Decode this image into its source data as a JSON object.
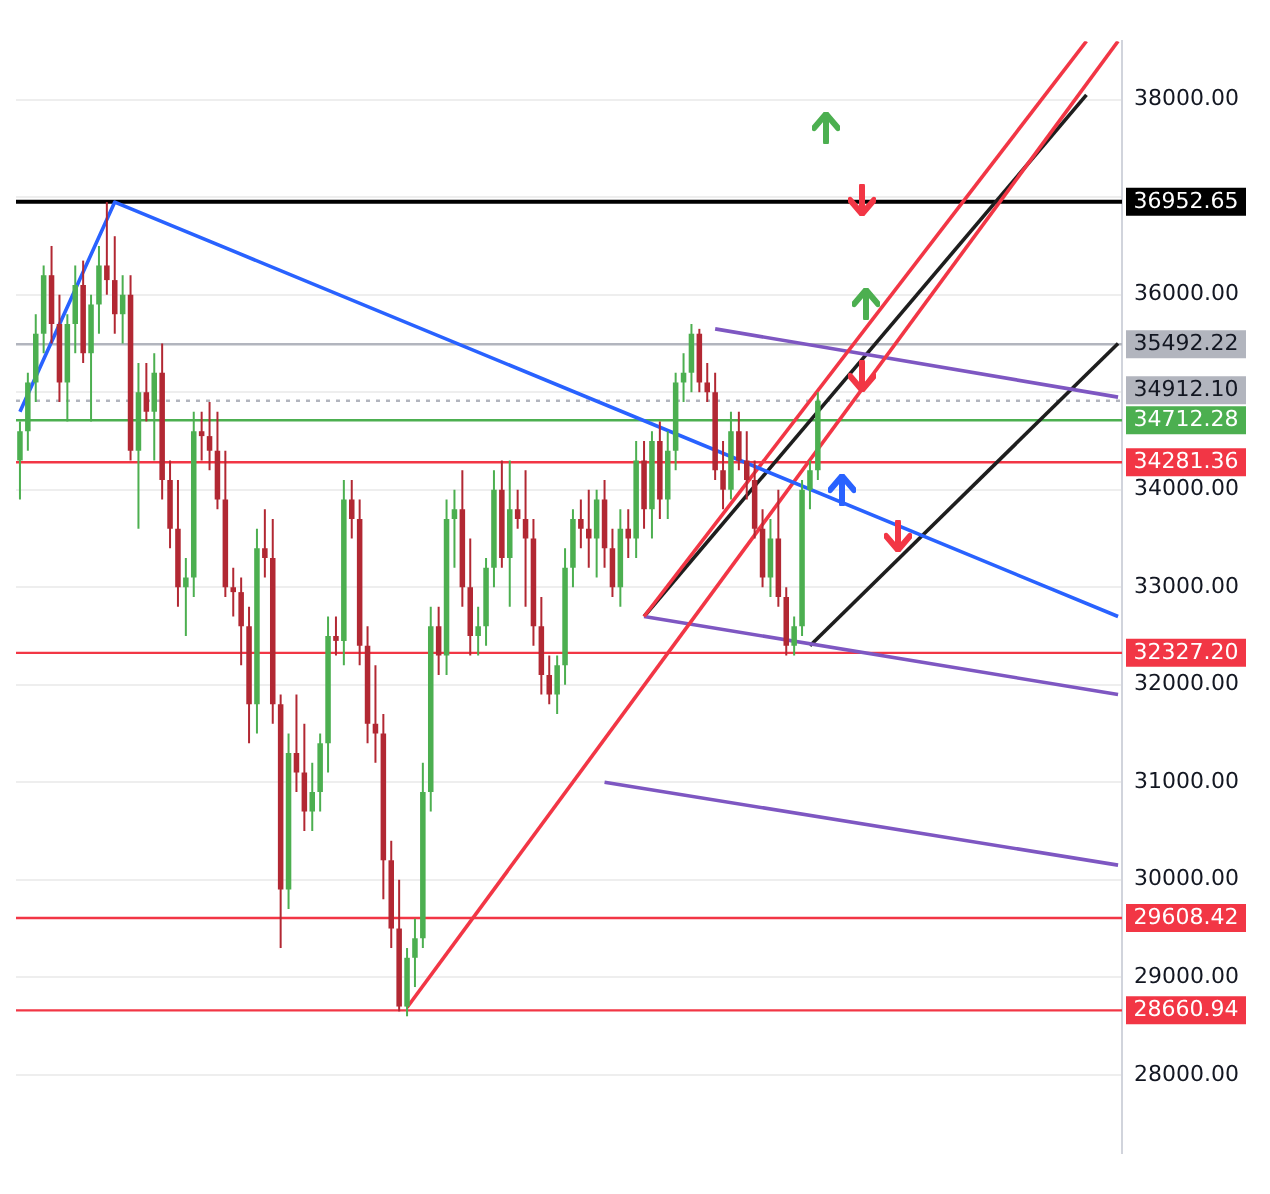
{
  "chart_data": {
    "type": "candlestick",
    "categories": [
      null,
      null,
      null,
      null,
      null,
      null,
      null,
      null,
      null,
      null,
      null,
      null,
      null,
      null,
      null,
      null,
      null,
      null,
      null,
      null,
      null,
      null,
      null,
      null,
      null,
      null,
      null,
      null,
      null,
      null,
      null,
      null,
      null,
      null,
      null,
      null,
      null,
      null,
      null,
      null,
      null,
      null,
      null,
      null,
      null,
      null,
      null,
      null,
      null,
      null,
      null,
      null,
      null,
      null,
      null,
      null,
      null,
      null,
      null,
      null,
      null,
      null,
      null,
      null,
      null,
      null,
      null,
      null,
      null,
      null,
      null,
      null,
      null,
      null,
      null,
      null,
      null,
      null,
      null,
      null,
      null,
      null,
      null,
      null,
      null,
      null,
      null,
      null,
      null,
      null,
      null,
      null,
      null,
      null,
      null,
      null,
      null,
      null,
      null,
      null,
      null,
      null,
      null,
      null,
      null,
      null,
      null,
      null,
      null,
      null,
      null,
      null,
      null,
      null,
      null,
      null,
      null,
      null,
      null,
      null,
      null,
      null,
      null,
      null,
      null,
      null,
      null,
      null,
      null,
      null,
      null,
      null,
      null,
      null,
      null,
      null,
      null,
      null,
      null,
      null
    ],
    "ohlc": [
      [
        34300,
        34700,
        33900,
        34600
      ],
      [
        34600,
        35200,
        34400,
        35100
      ],
      [
        35100,
        35800,
        34900,
        35600
      ],
      [
        35600,
        36300,
        35400,
        36200
      ],
      [
        36200,
        36500,
        35500,
        35700
      ],
      [
        35700,
        36000,
        34900,
        35100
      ],
      [
        35100,
        35800,
        34700,
        35700
      ],
      [
        35700,
        36300,
        35400,
        36100
      ],
      [
        36100,
        36350,
        35300,
        35400
      ],
      [
        35400,
        36000,
        34700,
        35900
      ],
      [
        35900,
        36500,
        35600,
        36300
      ],
      [
        36300,
        36950,
        36000,
        36150
      ],
      [
        36150,
        36600,
        35600,
        35800
      ],
      [
        35800,
        36200,
        35500,
        36000
      ],
      [
        36000,
        36200,
        34300,
        34400
      ],
      [
        34400,
        35300,
        33600,
        35000
      ],
      [
        35000,
        35300,
        34700,
        34800
      ],
      [
        34800,
        35400,
        34300,
        35200
      ],
      [
        35200,
        35500,
        33900,
        34100
      ],
      [
        34100,
        34300,
        33400,
        33600
      ],
      [
        33600,
        34100,
        32800,
        33000
      ],
      [
        33000,
        33300,
        32500,
        33100
      ],
      [
        33100,
        34800,
        32900,
        34600
      ],
      [
        34600,
        34800,
        34300,
        34550
      ],
      [
        34550,
        34900,
        34200,
        34400
      ],
      [
        34400,
        34800,
        33800,
        33900
      ],
      [
        33900,
        34400,
        32900,
        33000
      ],
      [
        33000,
        33200,
        32700,
        32950
      ],
      [
        32950,
        33100,
        32200,
        32600
      ],
      [
        32600,
        32800,
        31400,
        31800
      ],
      [
        31800,
        33600,
        31500,
        33400
      ],
      [
        33400,
        33800,
        33100,
        33300
      ],
      [
        33300,
        33700,
        31600,
        31800
      ],
      [
        31800,
        31900,
        29300,
        29900
      ],
      [
        29900,
        31500,
        29700,
        31300
      ],
      [
        31300,
        31900,
        30900,
        31100
      ],
      [
        31100,
        31600,
        30500,
        30700
      ],
      [
        30700,
        31200,
        30500,
        30900
      ],
      [
        30900,
        31500,
        30700,
        31400
      ],
      [
        31400,
        32700,
        31100,
        32500
      ],
      [
        32500,
        32700,
        32300,
        32450
      ],
      [
        32450,
        34100,
        32200,
        33900
      ],
      [
        33900,
        34100,
        33500,
        33700
      ],
      [
        33700,
        33900,
        32200,
        32400
      ],
      [
        32400,
        32600,
        31400,
        31600
      ],
      [
        31600,
        32200,
        31200,
        31500
      ],
      [
        31500,
        31700,
        29800,
        30200
      ],
      [
        30200,
        30400,
        29300,
        29500
      ],
      [
        29500,
        30000,
        28650,
        28700
      ],
      [
        28700,
        29300,
        28600,
        29200
      ],
      [
        29200,
        29600,
        28900,
        29400
      ],
      [
        29400,
        31200,
        29300,
        30900
      ],
      [
        30900,
        32800,
        30700,
        32600
      ],
      [
        32600,
        32800,
        32100,
        32300
      ],
      [
        32300,
        33900,
        32100,
        33700
      ],
      [
        33700,
        34000,
        33200,
        33800
      ],
      [
        33800,
        34200,
        32800,
        33000
      ],
      [
        33000,
        33500,
        32300,
        32500
      ],
      [
        32500,
        32800,
        32300,
        32600
      ],
      [
        32600,
        33300,
        32400,
        33200
      ],
      [
        33200,
        34200,
        33000,
        34000
      ],
      [
        34000,
        34300,
        33200,
        33300
      ],
      [
        33300,
        34300,
        32800,
        33800
      ],
      [
        33800,
        34000,
        33600,
        33700
      ],
      [
        33700,
        34200,
        32800,
        33500
      ],
      [
        33500,
        33700,
        32400,
        32600
      ],
      [
        32600,
        32900,
        31900,
        32100
      ],
      [
        32100,
        32300,
        31800,
        31900
      ],
      [
        31900,
        32300,
        31700,
        32200
      ],
      [
        32200,
        33400,
        32000,
        33200
      ],
      [
        33200,
        33800,
        33000,
        33700
      ],
      [
        33700,
        33900,
        33400,
        33600
      ],
      [
        33600,
        34000,
        33200,
        33500
      ],
      [
        33500,
        34000,
        33100,
        33900
      ],
      [
        33900,
        34100,
        33200,
        33400
      ],
      [
        33400,
        33600,
        32900,
        33000
      ],
      [
        33000,
        33800,
        32800,
        33600
      ],
      [
        33600,
        33800,
        33300,
        33500
      ],
      [
        33500,
        34500,
        33300,
        34300
      ],
      [
        34300,
        34500,
        33600,
        33800
      ],
      [
        33800,
        34600,
        33500,
        34500
      ],
      [
        34500,
        34700,
        33700,
        33900
      ],
      [
        33900,
        34600,
        33700,
        34400
      ],
      [
        34400,
        35200,
        34200,
        35100
      ],
      [
        35100,
        35400,
        34900,
        35200
      ],
      [
        35200,
        35700,
        35000,
        35600
      ],
      [
        35600,
        35650,
        35000,
        35100
      ],
      [
        35100,
        35300,
        34900,
        35000
      ],
      [
        35000,
        35200,
        34100,
        34200
      ],
      [
        34200,
        34500,
        33800,
        34000
      ],
      [
        34000,
        34800,
        33900,
        34600
      ],
      [
        34600,
        34800,
        34200,
        34300
      ],
      [
        34300,
        34600,
        33900,
        34100
      ],
      [
        34100,
        34300,
        33500,
        33600
      ],
      [
        33600,
        33800,
        33000,
        33100
      ],
      [
        33100,
        33700,
        32900,
        33500
      ],
      [
        33500,
        34000,
        32800,
        32900
      ],
      [
        32900,
        33000,
        32300,
        32400
      ],
      [
        32400,
        32700,
        32300,
        32600
      ],
      [
        32600,
        34100,
        32500,
        34000
      ],
      [
        34000,
        34300,
        33800,
        34200
      ],
      [
        34200,
        35000,
        34100,
        34912.1
      ],
      null,
      null,
      null,
      null,
      null,
      null,
      null,
      null,
      null,
      null,
      null,
      null,
      null,
      null,
      null,
      null,
      null,
      null,
      null,
      null,
      null,
      null,
      null,
      null,
      null,
      null,
      null,
      null,
      null,
      null,
      null,
      null,
      null,
      null,
      null,
      null,
      null,
      null
    ],
    "series": [
      {
        "type": "line",
        "color": "#2962ff",
        "values": [
          34800,
          null,
          null,
          null,
          null,
          null,
          null,
          null,
          null,
          null,
          null,
          null,
          36950,
          null,
          null,
          null,
          null,
          null,
          null,
          null,
          null,
          null,
          null,
          null,
          null,
          null,
          null,
          null,
          null,
          null,
          null,
          null,
          null,
          null,
          null,
          null,
          null,
          null,
          null,
          null,
          null,
          null,
          null,
          null,
          null,
          null,
          null,
          null,
          null,
          null,
          null,
          null,
          null,
          null,
          null,
          null,
          null,
          null,
          null,
          null,
          null,
          null,
          null,
          null,
          null,
          null,
          null,
          null,
          null,
          null,
          null,
          null,
          null,
          null,
          null,
          null,
          null,
          null,
          null,
          null,
          null,
          null,
          null,
          null,
          null,
          null,
          null,
          null,
          null,
          null,
          null,
          null,
          null,
          null,
          null,
          null,
          null,
          null,
          null,
          null,
          null,
          null,
          null,
          null,
          null,
          null,
          null,
          null,
          null,
          null,
          null,
          null,
          null,
          null,
          null,
          null,
          null,
          null,
          null,
          null,
          null,
          null,
          null,
          null,
          null,
          null,
          null,
          null,
          null,
          null,
          null,
          null,
          null,
          null,
          null,
          null,
          null,
          null,
          null,
          32700
        ]
      },
      {
        "type": "line",
        "color": "#f23645",
        "values": [
          null,
          null,
          null,
          null,
          null,
          null,
          null,
          null,
          null,
          null,
          null,
          null,
          null,
          null,
          null,
          null,
          null,
          null,
          null,
          null,
          null,
          null,
          null,
          null,
          null,
          null,
          null,
          null,
          null,
          null,
          null,
          null,
          null,
          null,
          null,
          null,
          null,
          null,
          null,
          null,
          null,
          null,
          null,
          null,
          null,
          null,
          null,
          null,
          null,
          28690,
          null,
          null,
          null,
          null,
          null,
          null,
          null,
          null,
          null,
          null,
          null,
          null,
          null,
          null,
          null,
          null,
          null,
          null,
          null,
          null,
          null,
          null,
          null,
          null,
          null,
          null,
          null,
          null,
          null,
          null,
          null,
          null,
          null,
          null,
          null,
          null,
          null,
          null,
          null,
          null,
          null,
          null,
          null,
          null,
          null,
          null,
          null,
          null,
          null,
          null,
          null,
          null,
          null,
          null,
          null,
          null,
          null,
          null,
          null,
          null,
          null,
          null,
          null,
          null,
          null,
          null,
          null,
          null,
          null,
          null,
          null,
          null,
          null,
          null,
          null,
          null,
          null,
          null,
          null,
          null,
          null,
          null,
          null,
          null,
          null,
          null,
          null,
          null,
          null,
          38600
        ]
      },
      {
        "type": "line",
        "color": "#f23645",
        "values": [
          null,
          null,
          null,
          null,
          null,
          null,
          null,
          null,
          null,
          null,
          null,
          null,
          null,
          null,
          null,
          null,
          null,
          null,
          null,
          null,
          null,
          null,
          null,
          null,
          null,
          null,
          null,
          null,
          null,
          null,
          null,
          null,
          null,
          null,
          null,
          null,
          null,
          null,
          null,
          null,
          null,
          null,
          null,
          null,
          null,
          null,
          null,
          null,
          null,
          null,
          null,
          null,
          null,
          null,
          null,
          null,
          null,
          null,
          null,
          null,
          null,
          null,
          null,
          null,
          null,
          null,
          null,
          null,
          null,
          null,
          null,
          null,
          null,
          null,
          null,
          null,
          null,
          null,
          null,
          32700,
          null,
          null,
          null,
          null,
          null,
          null,
          null,
          null,
          null,
          null,
          null,
          null,
          null,
          null,
          null,
          null,
          null,
          null,
          null,
          null,
          null,
          null,
          null,
          null,
          null,
          null,
          null,
          null,
          null,
          null,
          null,
          null,
          null,
          null,
          null,
          null,
          null,
          null,
          null,
          null,
          null,
          null,
          null,
          null,
          null,
          null,
          null,
          null,
          null,
          null,
          null,
          null,
          null,
          null,
          null,
          38600,
          null,
          null,
          null,
          null
        ]
      },
      {
        "type": "line",
        "color": "#7e57c2",
        "values": [
          null,
          null,
          null,
          null,
          null,
          null,
          null,
          null,
          null,
          null,
          null,
          null,
          null,
          null,
          null,
          null,
          null,
          null,
          null,
          null,
          null,
          null,
          null,
          null,
          null,
          null,
          null,
          null,
          null,
          null,
          null,
          null,
          null,
          null,
          null,
          null,
          null,
          null,
          null,
          null,
          null,
          null,
          null,
          null,
          null,
          null,
          null,
          null,
          null,
          null,
          null,
          null,
          null,
          null,
          null,
          null,
          null,
          null,
          null,
          null,
          null,
          null,
          null,
          null,
          null,
          null,
          null,
          null,
          null,
          null,
          null,
          null,
          null,
          null,
          null,
          null,
          null,
          null,
          null,
          32700,
          null,
          null,
          null,
          null,
          null,
          null,
          null,
          null,
          null,
          null,
          null,
          null,
          null,
          null,
          null,
          null,
          null,
          null,
          null,
          null,
          null,
          null,
          null,
          null,
          null,
          null,
          null,
          null,
          null,
          null,
          null,
          null,
          null,
          null,
          null,
          null,
          null,
          null,
          null,
          null,
          null,
          null,
          null,
          null,
          null,
          null,
          null,
          null,
          null,
          null,
          null,
          null,
          null,
          null,
          null,
          null,
          null,
          null,
          null,
          31900
        ]
      },
      {
        "type": "line",
        "color": "#7e57c2",
        "values": [
          null,
          null,
          null,
          null,
          null,
          null,
          null,
          null,
          null,
          null,
          null,
          null,
          null,
          null,
          null,
          null,
          null,
          null,
          null,
          null,
          null,
          null,
          null,
          null,
          null,
          null,
          null,
          null,
          null,
          null,
          null,
          null,
          null,
          null,
          null,
          null,
          null,
          null,
          null,
          null,
          null,
          null,
          null,
          null,
          null,
          null,
          null,
          null,
          null,
          null,
          null,
          null,
          null,
          null,
          null,
          null,
          null,
          null,
          null,
          null,
          null,
          null,
          null,
          null,
          null,
          null,
          null,
          null,
          null,
          null,
          null,
          null,
          null,
          null,
          null,
          null,
          null,
          null,
          null,
          null,
          null,
          null,
          null,
          null,
          null,
          null,
          null,
          null,
          35650,
          null,
          null,
          null,
          null,
          null,
          null,
          null,
          null,
          null,
          null,
          null,
          null,
          null,
          null,
          null,
          null,
          null,
          null,
          null,
          null,
          null,
          null,
          null,
          null,
          null,
          null,
          null,
          null,
          null,
          null,
          null,
          null,
          null,
          null,
          null,
          null,
          null,
          null,
          null,
          null,
          null,
          null,
          null,
          null,
          null,
          null,
          null,
          null,
          null,
          null,
          34950
        ]
      },
      {
        "type": "line",
        "color": "#7e57c2",
        "values": [
          null,
          null,
          null,
          null,
          null,
          null,
          null,
          null,
          null,
          null,
          null,
          null,
          null,
          null,
          null,
          null,
          null,
          null,
          null,
          null,
          null,
          null,
          null,
          null,
          null,
          null,
          null,
          null,
          null,
          null,
          null,
          null,
          null,
          null,
          null,
          null,
          null,
          null,
          null,
          null,
          null,
          null,
          null,
          null,
          null,
          null,
          null,
          null,
          null,
          null,
          null,
          null,
          null,
          null,
          null,
          null,
          null,
          null,
          null,
          null,
          null,
          null,
          null,
          null,
          null,
          null,
          null,
          null,
          null,
          null,
          null,
          null,
          null,
          null,
          31000,
          null,
          null,
          null,
          null,
          null,
          null,
          null,
          null,
          null,
          null,
          null,
          null,
          null,
          null,
          null,
          null,
          null,
          null,
          null,
          null,
          null,
          null,
          null,
          null,
          null,
          null,
          null,
          null,
          null,
          null,
          null,
          null,
          null,
          null,
          null,
          null,
          null,
          null,
          null,
          null,
          null,
          null,
          null,
          null,
          null,
          null,
          null,
          null,
          null,
          null,
          null,
          null,
          null,
          null,
          null,
          null,
          null,
          null,
          null,
          null,
          null,
          null,
          null,
          null,
          30150
        ]
      },
      {
        "type": "line",
        "color": "#1e1e1e",
        "values": [
          null,
          null,
          null,
          null,
          null,
          null,
          null,
          null,
          null,
          null,
          null,
          null,
          null,
          null,
          null,
          null,
          null,
          null,
          null,
          null,
          null,
          null,
          null,
          null,
          null,
          null,
          null,
          null,
          null,
          null,
          null,
          null,
          null,
          null,
          null,
          null,
          null,
          null,
          null,
          null,
          null,
          null,
          null,
          null,
          null,
          null,
          null,
          null,
          null,
          null,
          null,
          null,
          null,
          null,
          null,
          null,
          null,
          null,
          null,
          null,
          null,
          null,
          null,
          null,
          null,
          null,
          null,
          null,
          null,
          null,
          null,
          null,
          null,
          null,
          null,
          null,
          null,
          null,
          null,
          32700,
          null,
          null,
          null,
          null,
          null,
          null,
          null,
          null,
          null,
          null,
          null,
          null,
          null,
          null,
          null,
          null,
          null,
          null,
          null,
          null,
          null,
          null,
          null,
          null,
          null,
          null,
          null,
          null,
          null,
          null,
          null,
          null,
          null,
          null,
          null,
          null,
          null,
          null,
          null,
          null,
          null,
          null,
          null,
          null,
          null,
          null,
          null,
          null,
          null,
          null,
          null,
          null,
          null,
          null,
          null,
          38050,
          null,
          null,
          null,
          null
        ]
      },
      {
        "type": "line",
        "color": "#1e1e1e",
        "values": [
          null,
          null,
          null,
          null,
          null,
          null,
          null,
          null,
          null,
          null,
          null,
          null,
          null,
          null,
          null,
          null,
          null,
          null,
          null,
          null,
          null,
          null,
          null,
          null,
          null,
          null,
          null,
          null,
          null,
          null,
          null,
          null,
          null,
          null,
          null,
          null,
          null,
          null,
          null,
          null,
          null,
          null,
          null,
          null,
          null,
          null,
          null,
          null,
          null,
          null,
          null,
          null,
          null,
          null,
          null,
          null,
          null,
          null,
          null,
          null,
          null,
          null,
          null,
          null,
          null,
          null,
          null,
          null,
          null,
          null,
          null,
          null,
          null,
          null,
          null,
          null,
          null,
          null,
          null,
          null,
          null,
          null,
          null,
          null,
          null,
          null,
          null,
          null,
          null,
          null,
          null,
          null,
          null,
          null,
          null,
          null,
          null,
          null,
          null,
          null,
          32400,
          null,
          null,
          null,
          null,
          null,
          null,
          null,
          null,
          null,
          null,
          null,
          null,
          null,
          null,
          null,
          null,
          null,
          null,
          null,
          null,
          null,
          null,
          null,
          null,
          null,
          null,
          null,
          null,
          null,
          null,
          null,
          null,
          null,
          null,
          null,
          null,
          null,
          null,
          35500
        ]
      }
    ],
    "ylim": [
      27200,
      38600
    ],
    "yticks": [
      {
        "value": 28000,
        "label": "28000.00"
      },
      {
        "value": 29000,
        "label": "29000.00"
      },
      {
        "value": 30000,
        "label": "30000.00"
      },
      {
        "value": 31000,
        "label": "31000.00"
      },
      {
        "value": 32000,
        "label": "32000.00"
      },
      {
        "value": 33000,
        "label": "33000.00"
      },
      {
        "value": 34000,
        "label": "34000.00"
      },
      {
        "value": 35000,
        "label": null
      },
      {
        "value": 36000,
        "label": "36000.00"
      },
      {
        "value": 37000,
        "label": null
      },
      {
        "value": 38000,
        "label": "38000.00"
      }
    ],
    "ref_lines": [
      {
        "axis": "y",
        "value": 36952.65,
        "label": "36952.65",
        "color": "#000000"
      },
      {
        "axis": "y",
        "value": 35492.22,
        "label": "35492.22",
        "color": "#b2b5be"
      },
      {
        "axis": "y",
        "value": 34912.1,
        "label": "34912.10",
        "color": "#b2b5be",
        "line_style": "dotted"
      },
      {
        "axis": "y",
        "value": 34712.28,
        "label": "34712.28",
        "color": "#4caf50"
      },
      {
        "axis": "y",
        "value": 34281.36,
        "label": "34281.36",
        "color": "#f23645"
      },
      {
        "axis": "y",
        "value": 32327.2,
        "label": "32327.20",
        "color": "#f23645"
      },
      {
        "axis": "y",
        "value": 29608.42,
        "label": "29608.42",
        "color": "#f23645"
      },
      {
        "axis": "y",
        "value": 28660.94,
        "label": "28660.94",
        "color": "#f23645"
      }
    ],
    "grid": "y",
    "tick_labels": "y"
  }
}
